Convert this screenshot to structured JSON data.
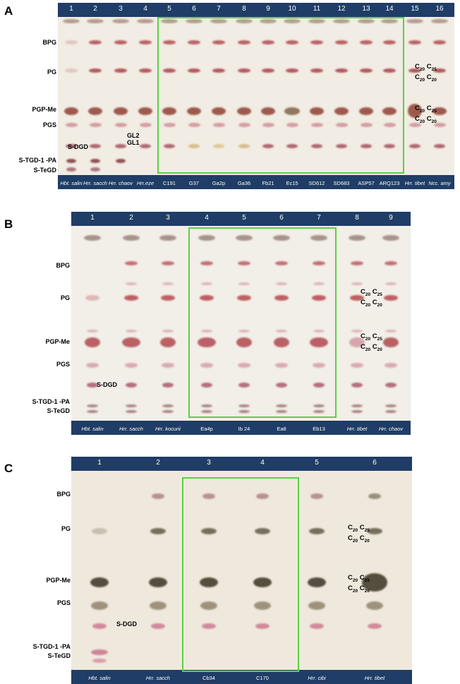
{
  "panels": [
    {
      "letter": "A",
      "lane_numbers": [
        "1",
        "2",
        "3",
        "4",
        "5",
        "6",
        "7",
        "8",
        "9",
        "10",
        "11",
        "12",
        "13",
        "14",
        "15",
        "16"
      ],
      "lane_names": [
        "Hbt. salin",
        "Hrr. sacch",
        "Hrr. chaov",
        "Hrr.eze",
        "C191",
        "G37",
        "Ga2p",
        "Ga36",
        "Fb21",
        "Ec15",
        "SD612",
        "SD683",
        "ASP57",
        "ARQ123",
        "Hrr. tibet",
        "Ncc. amy"
      ],
      "row_labels": [
        "BPG",
        "PG",
        "PGP-Me",
        "PGS",
        "S-TGD-1 -PA",
        "S-TeGD"
      ],
      "plate_labels": [
        "S-DGD",
        "GL2",
        "GL1"
      ],
      "chain_labels": [
        {
          "l1a": "C",
          "l1a_sub": "20",
          "l1b": "C",
          "l1b_sub": "25",
          "l2a": "C",
          "l2a_sub": "20",
          "l2b": "C",
          "l2b_sub": "20"
        },
        {
          "l1a": "C",
          "l1a_sub": "20",
          "l1b": "C",
          "l1b_sub": "25",
          "l2a": "C",
          "l2a_sub": "20",
          "l2b": "C",
          "l2b_sub": "20"
        }
      ],
      "colors": {
        "bar": "#1f3d66",
        "highlight": "#5ad144",
        "plate": "#f1ece4"
      }
    },
    {
      "letter": "B",
      "lane_numbers": [
        "1",
        "2",
        "3",
        "4",
        "5",
        "6",
        "7",
        "8",
        "9"
      ],
      "lane_names": [
        "Hbt. salin",
        "Hrr. sacch",
        "Hrr. kocurii",
        "Ea4p",
        "Ib 24",
        "Ea8",
        "Eb13",
        "Hrr. tibet",
        "Hrr. chaov"
      ],
      "row_labels": [
        "BPG",
        "PG",
        "PGP-Me",
        "PGS",
        "S-TGD-1 -PA",
        "S-TeGD"
      ],
      "plate_labels": [
        "S-DGD"
      ],
      "chain_labels": [
        {
          "l1a": "C",
          "l1a_sub": "20",
          "l1b": "C",
          "l1b_sub": "25",
          "l2a": "C",
          "l2a_sub": "20",
          "l2b": "C",
          "l2b_sub": "20"
        },
        {
          "l1a": "C",
          "l1a_sub": "20",
          "l1b": "C",
          "l1b_sub": "25",
          "l2a": "C",
          "l2a_sub": "20",
          "l2b": "C",
          "l2b_sub": "20"
        }
      ],
      "colors": {
        "bar": "#1f3d66",
        "highlight": "#5ad144",
        "plate": "#f2eee8"
      }
    },
    {
      "letter": "C",
      "lane_numbers": [
        "1",
        "2",
        "3",
        "4",
        "5",
        "6"
      ],
      "lane_names": [
        "Hbt. salin",
        "Hrr. sacch",
        "Cb34",
        "C170",
        "Hrr. cibi",
        "Hrr. tibet"
      ],
      "row_labels": [
        "BPG",
        "PG",
        "PGP-Me",
        "PGS",
        "S-TGD-1 -PA",
        "S-TeGD"
      ],
      "plate_labels": [
        "S-DGD"
      ],
      "chain_labels": [
        {
          "l1a": "C",
          "l1a_sub": "20",
          "l1b": "C",
          "l1b_sub": "25",
          "l2a": "C",
          "l2a_sub": "20",
          "l2b": "C",
          "l2b_sub": "20"
        },
        {
          "l1a": "C",
          "l1a_sub": "20",
          "l1b": "C",
          "l1b_sub": "25",
          "l2a": "C",
          "l2a_sub": "20",
          "l2b": "C",
          "l2b_sub": "20"
        }
      ],
      "colors": {
        "bar": "#1f3d66",
        "highlight": "#5ad144",
        "plate": "#efe9dd"
      }
    }
  ]
}
